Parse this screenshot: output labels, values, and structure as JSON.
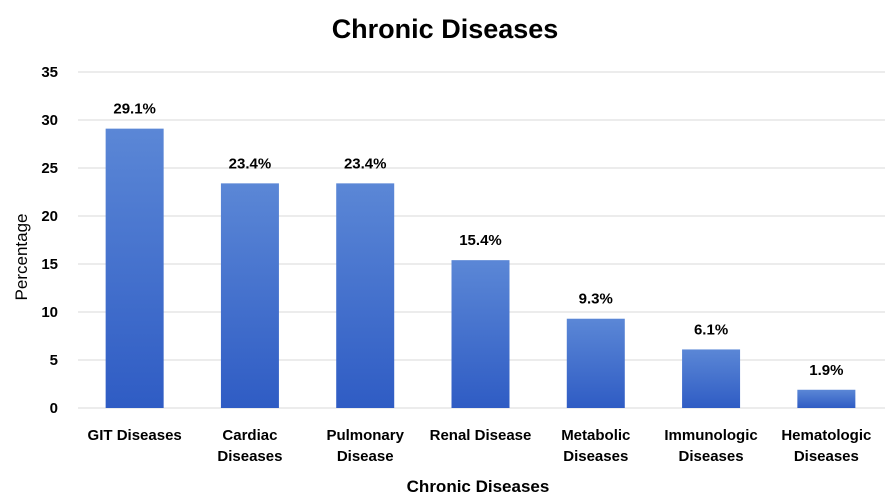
{
  "chart_data": {
    "type": "bar",
    "title": "Chronic Diseases",
    "xlabel": "Chronic Diseases",
    "ylabel": "Percentage",
    "categories": [
      [
        "GIT Diseases"
      ],
      [
        "Cardiac",
        "Diseases"
      ],
      [
        "Pulmonary",
        "Disease"
      ],
      [
        "Renal Disease"
      ],
      [
        "Metabolic",
        "Diseases"
      ],
      [
        "Immunologic",
        "Diseases"
      ],
      [
        "Hematologic",
        "Diseases"
      ]
    ],
    "values": [
      29.1,
      23.4,
      23.4,
      15.4,
      9.3,
      6.1,
      1.9
    ],
    "data_labels": [
      "29.1%",
      "23.4%",
      "23.4%",
      "15.4%",
      "9.3%",
      "6.1%",
      "1.9%"
    ],
    "ylim": [
      0,
      35
    ],
    "yticks": [
      0,
      5,
      10,
      15,
      20,
      25,
      30,
      35
    ],
    "grid": true,
    "legend": "none",
    "colors": {
      "bar_top": "#5b87d6",
      "bar_bottom": "#2f5cc4",
      "grid": "#d9d9d9"
    }
  }
}
